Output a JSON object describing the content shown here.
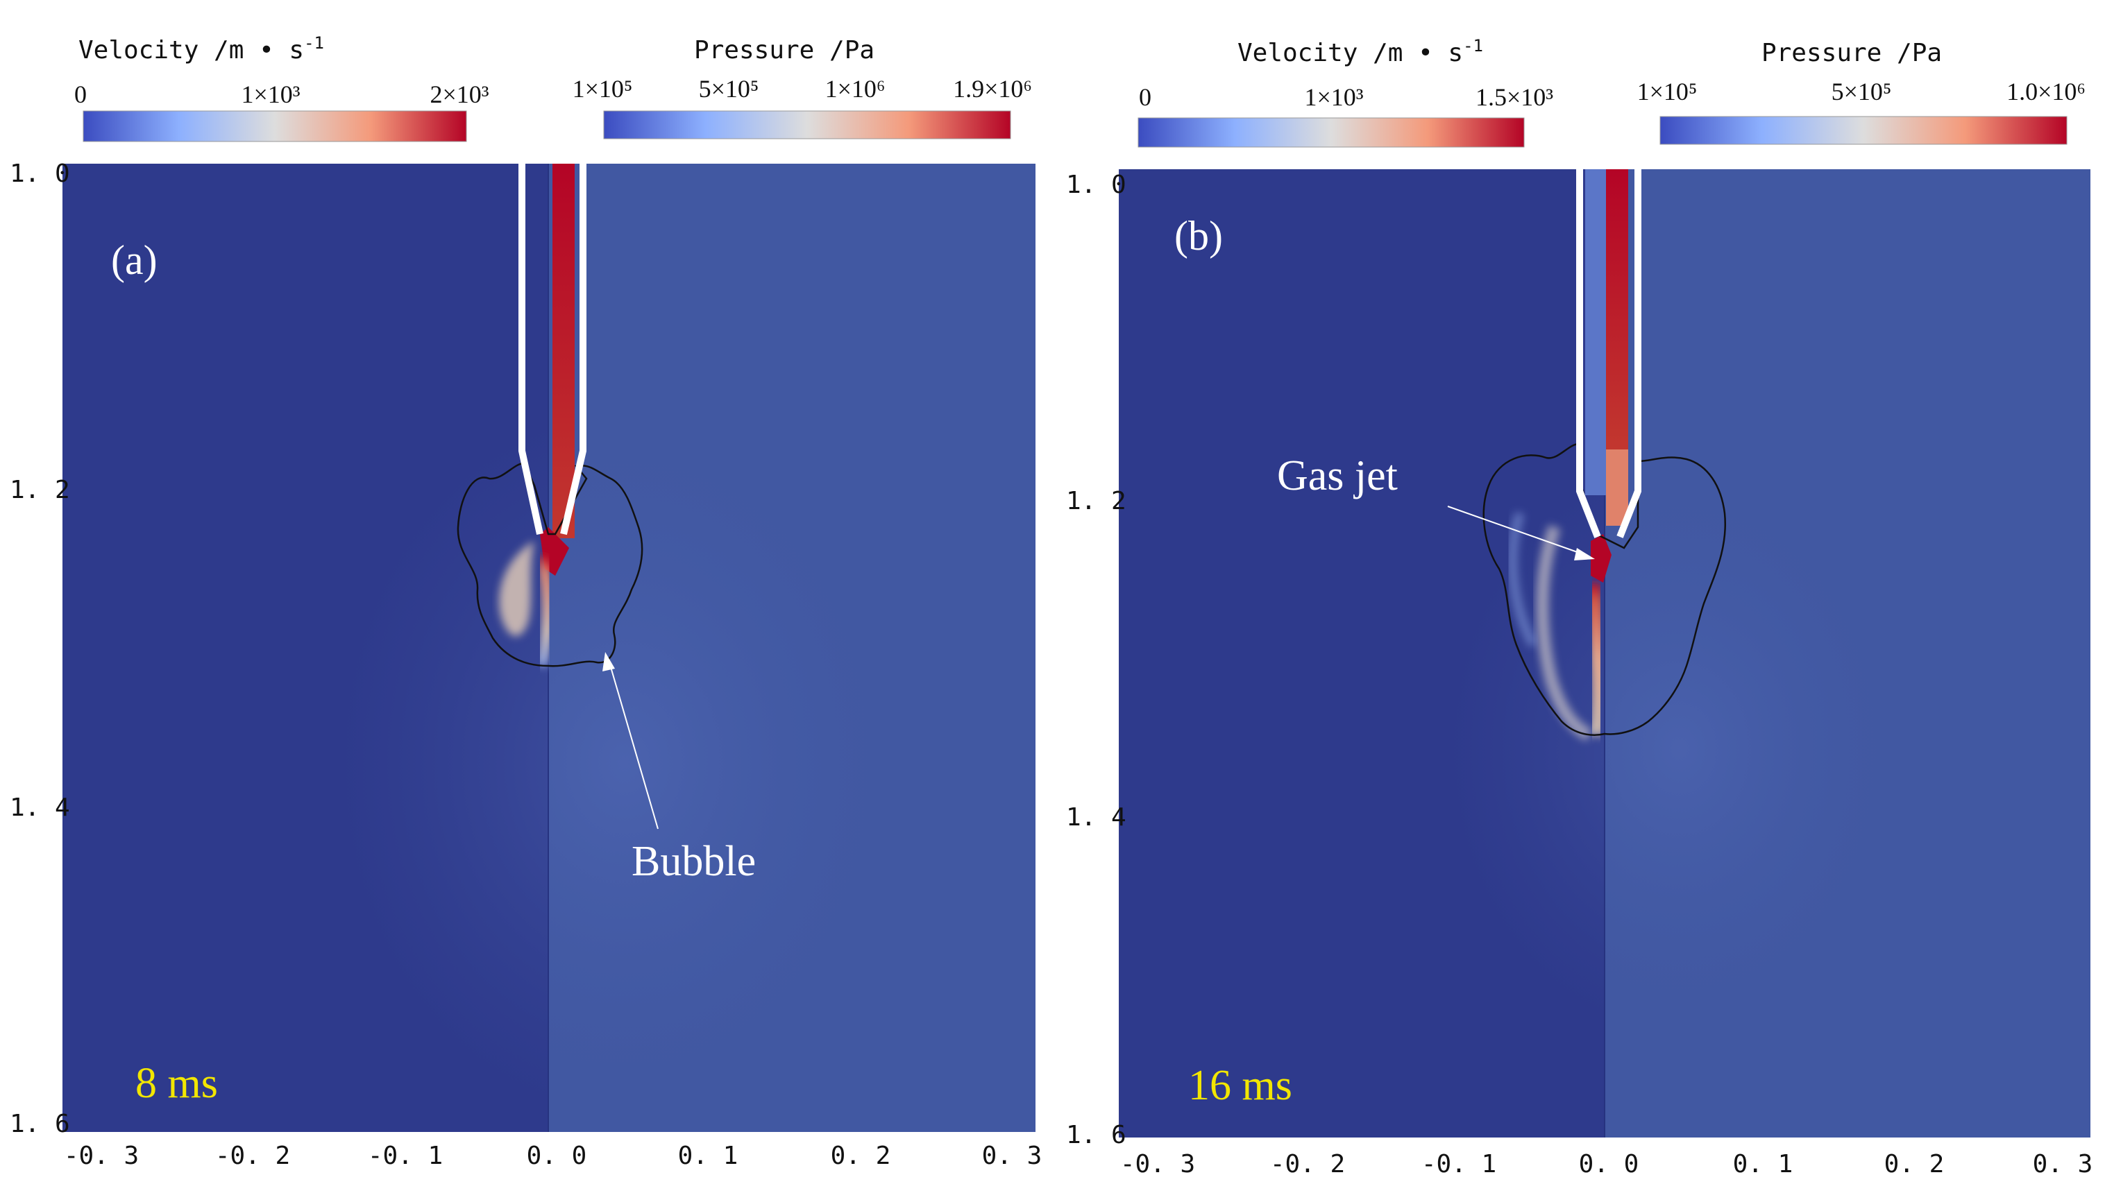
{
  "chart_data": [
    {
      "type": "contour",
      "panel_label": "(a)",
      "time_label": "8 ms",
      "xlim": [
        -0.3,
        0.3
      ],
      "ylim": [
        1.0,
        1.6
      ],
      "x_ticks": [
        "-0. 3",
        "-0. 2",
        "-0. 1",
        "0. 0",
        "0. 1",
        "0. 2",
        "0. 3"
      ],
      "y_ticks": [
        "1. 0",
        "1. 2",
        "1. 4",
        "1. 6"
      ],
      "velocity_colorbar": {
        "title": "Velocity /m • s",
        "title_sup": "-1",
        "ticks": [
          "0",
          "1×10³",
          "2×10³"
        ],
        "range": [
          0,
          2000
        ]
      },
      "pressure_colorbar": {
        "title": "Pressure /Pa",
        "ticks": [
          "1×10⁵",
          "5×10⁵",
          "1×10⁶",
          "1.9×10⁶"
        ],
        "range": [
          100000,
          1900000
        ]
      },
      "annotation": "Bubble"
    },
    {
      "type": "contour",
      "panel_label": "(b)",
      "time_label": "16 ms",
      "xlim": [
        -0.3,
        0.3
      ],
      "ylim": [
        1.0,
        1.6
      ],
      "x_ticks": [
        "-0. 3",
        "-0. 2",
        "-0. 1",
        "0. 0",
        "0. 1",
        "0. 2",
        "0. 3"
      ],
      "y_ticks": [
        "1. 0",
        "1. 2",
        "1. 4",
        "1. 6"
      ],
      "velocity_colorbar": {
        "title": "Velocity /m • s",
        "title_sup": "-1",
        "ticks": [
          "0",
          "1×10³",
          "1.5×10³"
        ],
        "range": [
          0,
          1500
        ]
      },
      "pressure_colorbar": {
        "title": "Pressure /Pa",
        "ticks": [
          "1×10⁵",
          "5×10⁵",
          "1.0×10⁶"
        ],
        "range": [
          100000,
          1000000
        ]
      },
      "annotation": "Gas jet"
    }
  ],
  "colors": {
    "field_left": "#2e3a8c",
    "field_right": "#4158a2",
    "colormap_low": "#3b4cc0",
    "colormap_mid": "#dddddd",
    "colormap_high": "#b40426"
  }
}
